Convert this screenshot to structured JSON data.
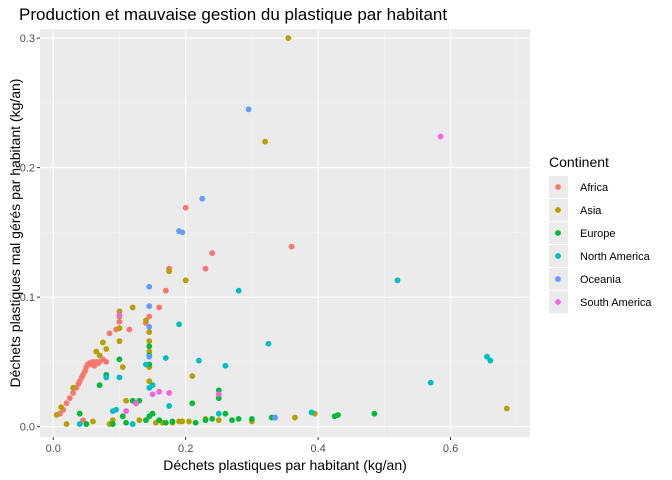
{
  "chart_data": {
    "type": "scatter",
    "title": "Production et mauvaise gestion du plastique par habitant",
    "xlabel": "Déchets plastiques par habitant (kg/an)",
    "ylabel": "Déchets plastiques mal gérés par habitant (kg/an)",
    "xlim": [
      -0.02,
      0.72
    ],
    "ylim": [
      -0.008,
      0.307
    ],
    "xticks": [
      {
        "value": 0.0,
        "label": "0.0"
      },
      {
        "value": 0.2,
        "label": "0.2"
      },
      {
        "value": 0.4,
        "label": "0.4"
      },
      {
        "value": 0.6,
        "label": "0.6"
      }
    ],
    "yticks": [
      {
        "value": 0.0,
        "label": "0.0"
      },
      {
        "value": 0.1,
        "label": "0.1"
      },
      {
        "value": 0.2,
        "label": "0.2"
      },
      {
        "value": 0.3,
        "label": "0.3"
      }
    ],
    "grid": true,
    "legend": {
      "title": "Continent",
      "position": "right"
    },
    "series": [
      {
        "name": "Africa",
        "color": "#F8766D",
        "points": [
          [
            0.01,
            0.01
          ],
          [
            0.015,
            0.013
          ],
          [
            0.02,
            0.018
          ],
          [
            0.025,
            0.022
          ],
          [
            0.03,
            0.026
          ],
          [
            0.035,
            0.03
          ],
          [
            0.038,
            0.033
          ],
          [
            0.04,
            0.035
          ],
          [
            0.043,
            0.038
          ],
          [
            0.045,
            0.04
          ],
          [
            0.048,
            0.043
          ],
          [
            0.05,
            0.046
          ],
          [
            0.052,
            0.048
          ],
          [
            0.055,
            0.049
          ],
          [
            0.058,
            0.048
          ],
          [
            0.06,
            0.05
          ],
          [
            0.062,
            0.047
          ],
          [
            0.065,
            0.05
          ],
          [
            0.068,
            0.049
          ],
          [
            0.07,
            0.05
          ],
          [
            0.075,
            0.052
          ],
          [
            0.08,
            0.05
          ],
          [
            0.085,
            0.072
          ],
          [
            0.095,
            0.075
          ],
          [
            0.1,
            0.081
          ],
          [
            0.115,
            0.075
          ],
          [
            0.14,
            0.08
          ],
          [
            0.145,
            0.085
          ],
          [
            0.16,
            0.092
          ],
          [
            0.17,
            0.105
          ],
          [
            0.175,
            0.122
          ],
          [
            0.2,
            0.169
          ],
          [
            0.23,
            0.122
          ],
          [
            0.24,
            0.134
          ],
          [
            0.36,
            0.139
          ],
          [
            0.045,
            0.005
          ]
        ]
      },
      {
        "name": "Asia",
        "color": "#B79F00",
        "points": [
          [
            0.005,
            0.009
          ],
          [
            0.012,
            0.015
          ],
          [
            0.02,
            0.002
          ],
          [
            0.03,
            0.03
          ],
          [
            0.05,
            0.002
          ],
          [
            0.06,
            0.004
          ],
          [
            0.065,
            0.058
          ],
          [
            0.07,
            0.055
          ],
          [
            0.075,
            0.065
          ],
          [
            0.08,
            0.06
          ],
          [
            0.085,
            0.002
          ],
          [
            0.09,
            0.005
          ],
          [
            0.1,
            0.089
          ],
          [
            0.1,
            0.085
          ],
          [
            0.1,
            0.076
          ],
          [
            0.1,
            0.066
          ],
          [
            0.105,
            0.046
          ],
          [
            0.11,
            0.02
          ],
          [
            0.12,
            0.092
          ],
          [
            0.125,
            0.018
          ],
          [
            0.13,
            0.005
          ],
          [
            0.14,
            0.082
          ],
          [
            0.145,
            0.073
          ],
          [
            0.145,
            0.066
          ],
          [
            0.145,
            0.058
          ],
          [
            0.145,
            0.046
          ],
          [
            0.145,
            0.035
          ],
          [
            0.15,
            0.01
          ],
          [
            0.155,
            0.003
          ],
          [
            0.165,
            0.003
          ],
          [
            0.175,
            0.12
          ],
          [
            0.18,
            0.003
          ],
          [
            0.19,
            0.004
          ],
          [
            0.195,
            0.004
          ],
          [
            0.2,
            0.113
          ],
          [
            0.205,
            0.004
          ],
          [
            0.21,
            0.039
          ],
          [
            0.23,
            0.006
          ],
          [
            0.25,
            0.005
          ],
          [
            0.3,
            0.004
          ],
          [
            0.32,
            0.22
          ],
          [
            0.355,
            0.3
          ],
          [
            0.365,
            0.007
          ],
          [
            0.395,
            0.01
          ],
          [
            0.685,
            0.014
          ]
        ]
      },
      {
        "name": "Europe",
        "color": "#00BA38",
        "points": [
          [
            0.04,
            0.01
          ],
          [
            0.05,
            0.002
          ],
          [
            0.07,
            0.032
          ],
          [
            0.08,
            0.04
          ],
          [
            0.09,
            0.002
          ],
          [
            0.1,
            0.052
          ],
          [
            0.105,
            0.008
          ],
          [
            0.11,
            0.003
          ],
          [
            0.12,
            0.02
          ],
          [
            0.13,
            0.02
          ],
          [
            0.14,
            0.005
          ],
          [
            0.145,
            0.062
          ],
          [
            0.145,
            0.055
          ],
          [
            0.145,
            0.048
          ],
          [
            0.145,
            0.008
          ],
          [
            0.15,
            0.01
          ],
          [
            0.16,
            0.005
          ],
          [
            0.17,
            0.003
          ],
          [
            0.18,
            0.004
          ],
          [
            0.21,
            0.018
          ],
          [
            0.215,
            0.003
          ],
          [
            0.23,
            0.005
          ],
          [
            0.24,
            0.006
          ],
          [
            0.25,
            0.028
          ],
          [
            0.25,
            0.022
          ],
          [
            0.26,
            0.01
          ],
          [
            0.27,
            0.005
          ],
          [
            0.28,
            0.006
          ],
          [
            0.3,
            0.006
          ],
          [
            0.33,
            0.007
          ],
          [
            0.425,
            0.008
          ],
          [
            0.43,
            0.009
          ],
          [
            0.485,
            0.01
          ]
        ]
      },
      {
        "name": "North America",
        "color": "#00BFC4",
        "points": [
          [
            0.04,
            0.002
          ],
          [
            0.08,
            0.038
          ],
          [
            0.09,
            0.012
          ],
          [
            0.095,
            0.013
          ],
          [
            0.1,
            0.038
          ],
          [
            0.12,
            0.002
          ],
          [
            0.14,
            0.048
          ],
          [
            0.145,
            0.03
          ],
          [
            0.15,
            0.032
          ],
          [
            0.17,
            0.053
          ],
          [
            0.175,
            0.016
          ],
          [
            0.19,
            0.079
          ],
          [
            0.22,
            0.051
          ],
          [
            0.25,
            0.01
          ],
          [
            0.26,
            0.047
          ],
          [
            0.28,
            0.105
          ],
          [
            0.325,
            0.064
          ],
          [
            0.335,
            0.007
          ],
          [
            0.39,
            0.011
          ],
          [
            0.52,
            0.113
          ],
          [
            0.57,
            0.034
          ],
          [
            0.655,
            0.054
          ],
          [
            0.66,
            0.051
          ]
        ]
      },
      {
        "name": "Oceania",
        "color": "#619CFF",
        "points": [
          [
            0.1,
            0.086
          ],
          [
            0.145,
            0.108
          ],
          [
            0.145,
            0.093
          ],
          [
            0.145,
            0.077
          ],
          [
            0.145,
            0.054
          ],
          [
            0.19,
            0.151
          ],
          [
            0.195,
            0.15
          ],
          [
            0.225,
            0.176
          ],
          [
            0.295,
            0.245
          ],
          [
            0.335,
            0.007
          ]
        ]
      },
      {
        "name": "South America",
        "color": "#F564E3",
        "points": [
          [
            0.1,
            0.086
          ],
          [
            0.11,
            0.012
          ],
          [
            0.125,
            0.018
          ],
          [
            0.15,
            0.025
          ],
          [
            0.16,
            0.027
          ],
          [
            0.175,
            0.026
          ],
          [
            0.25,
            0.025
          ],
          [
            0.585,
            0.224
          ]
        ]
      }
    ]
  }
}
